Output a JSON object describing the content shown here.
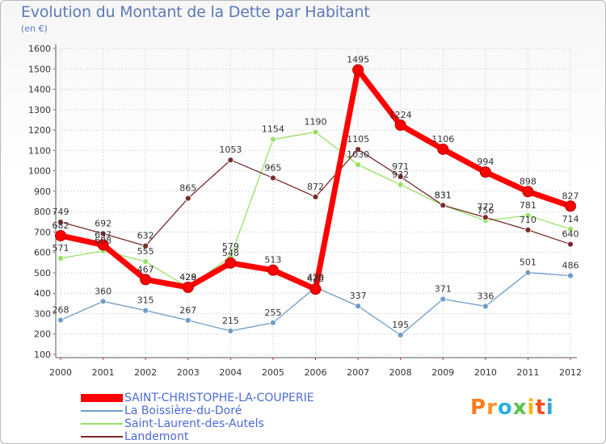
{
  "title": "Evolution du Montant de la Dette par Habitant",
  "subtitle": "(en €)",
  "logo": "Proxiti",
  "chart_data": {
    "type": "line",
    "x": [
      "2000",
      "2001",
      "2002",
      "2003",
      "2004",
      "2005",
      "2006",
      "2007",
      "2008",
      "2009",
      "2010",
      "2011",
      "2012"
    ],
    "ylim": [
      100,
      1600
    ],
    "yticks": [
      100,
      200,
      300,
      400,
      500,
      600,
      700,
      800,
      900,
      1000,
      1100,
      1200,
      1300,
      1400,
      1500,
      1600
    ],
    "grid": true,
    "legend": "bottom-left",
    "series": [
      {
        "name": "SAINT-CHRISTOPHE-LA-COUPERIE",
        "color": "#ff0000",
        "values": [
          682,
          637,
          467,
          429,
          548,
          513,
          420,
          1495,
          1224,
          1106,
          994,
          898,
          827
        ]
      },
      {
        "name": "La Boissière-du-Doré",
        "color": "#6e9cc7",
        "values": [
          268,
          360,
          315,
          267,
          215,
          255,
          429,
          337,
          195,
          371,
          336,
          501,
          486
        ]
      },
      {
        "name": "Saint-Laurent-des-Autels",
        "color": "#99e066",
        "values": [
          571,
          608,
          555,
          428,
          579,
          1154,
          1190,
          1030,
          932,
          831,
          756,
          781,
          714
        ]
      },
      {
        "name": "Landemont",
        "color": "#7a2a2a",
        "values": [
          749,
          692,
          632,
          865,
          1053,
          965,
          872,
          1105,
          971,
          831,
          772,
          710,
          640
        ]
      }
    ]
  }
}
